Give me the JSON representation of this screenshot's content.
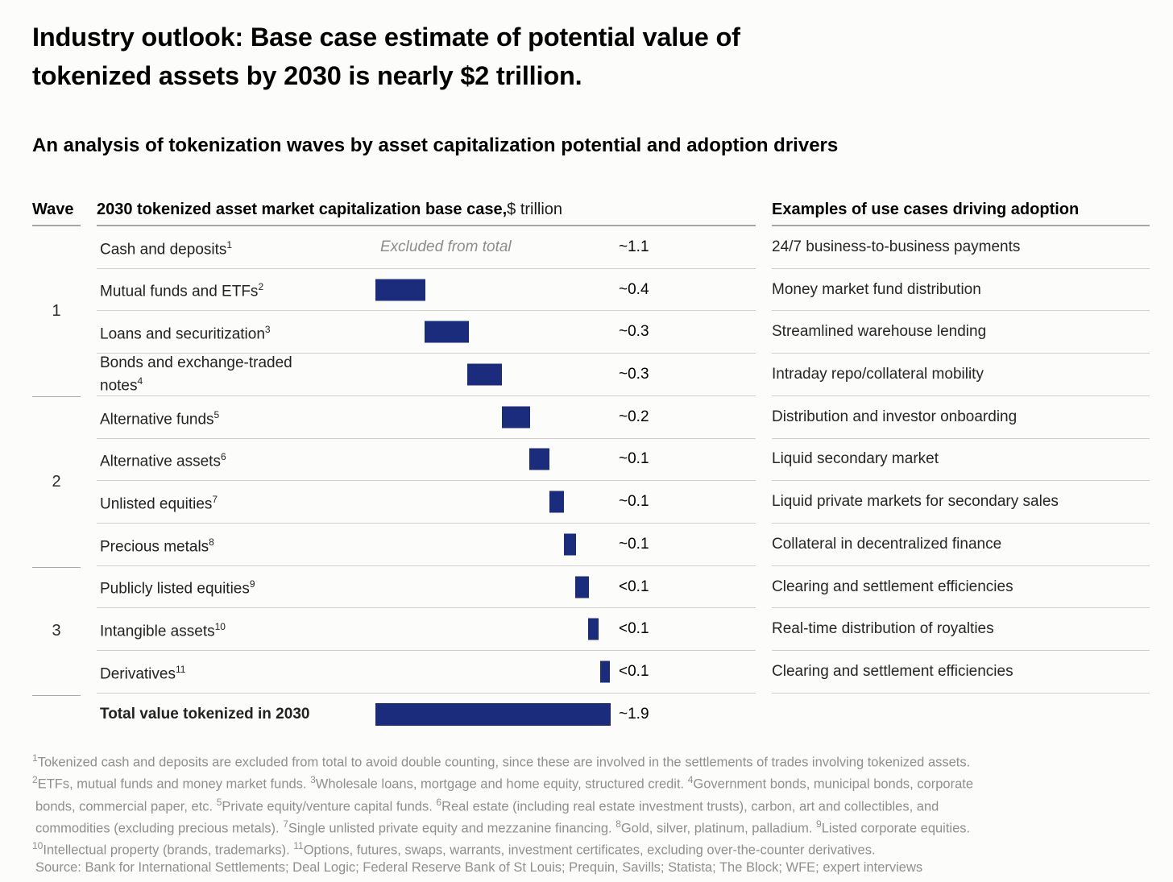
{
  "page": {
    "title_line1": "Industry outlook: Base case estimate of potential value of",
    "title_line2": "tokenized assets by 2030 is nearly $2 trillion.",
    "subtitle": "An analysis of tokenization waves by asset capitalization potential and adoption drivers"
  },
  "table": {
    "headers": {
      "wave": "Wave",
      "main_bold": "2030 tokenized asset market capitalization base case,",
      "main_regular": " $ trillion",
      "usecases": "Examples of use cases driving adoption"
    },
    "waves": [
      {
        "label": "1"
      },
      {
        "label": "2"
      },
      {
        "label": "3"
      }
    ],
    "rows": [
      {
        "label": "Cash and deposits",
        "sup": "1",
        "wave": 1,
        "note": "Excluded from total",
        "value": "~1.1",
        "usecase": "24/7 business-to-business payments",
        "bar": null
      },
      {
        "label": "Mutual funds and ETFs",
        "sup": "2",
        "wave": 1,
        "value": "~0.4",
        "usecase": "Money market fund distribution",
        "bar": {
          "left_pct": 0,
          "width_pct": 21.1
        }
      },
      {
        "label": "Loans and securitization",
        "sup": "3",
        "wave": 1,
        "value": "~0.3",
        "usecase": "Streamlined warehouse lending",
        "bar": {
          "left_pct": 20.9,
          "width_pct": 18.8
        }
      },
      {
        "label": "Bonds and exchange-traded notes",
        "sup": "4",
        "wave": 1,
        "value": "~0.3",
        "usecase": "Intraday repo/collateral mobility",
        "bar": {
          "left_pct": 39.0,
          "width_pct": 14.6
        }
      },
      {
        "label": "Alternative funds",
        "sup": "5",
        "wave": 2,
        "value": "~0.2",
        "usecase": "Distribution and investor onboarding",
        "bar": {
          "left_pct": 53.7,
          "width_pct": 12.2
        }
      },
      {
        "label": "Alternative assets",
        "sup": "6",
        "wave": 2,
        "value": "~0.1",
        "usecase": "Liquid secondary market",
        "bar": {
          "left_pct": 65.5,
          "width_pct": 8.4
        }
      },
      {
        "label": "Unlisted equities",
        "sup": "7",
        "wave": 2,
        "value": "~0.1",
        "usecase": "Liquid private markets for secondary sales",
        "bar": {
          "left_pct": 74.1,
          "width_pct": 6.1
        }
      },
      {
        "label": "Precious metals",
        "sup": "8",
        "wave": 2,
        "value": "~0.1",
        "usecase": "Collateral in decentralized finance",
        "bar": {
          "left_pct": 80.3,
          "width_pct": 4.9
        }
      },
      {
        "label": "Publicly listed equities",
        "sup": "9",
        "wave": 3,
        "value": "<0.1",
        "usecase": "Clearing and settlement efficiencies",
        "bar": {
          "left_pct": 85.0,
          "width_pct": 5.7
        }
      },
      {
        "label": "Intangible assets",
        "sup": "10",
        "wave": 3,
        "value": "<0.1",
        "usecase": "Real-time distribution of royalties",
        "bar": {
          "left_pct": 90.4,
          "width_pct": 4.6
        }
      },
      {
        "label": "Derivatives",
        "sup": "11",
        "wave": 3,
        "value": "<0.1",
        "usecase": "Clearing and settlement efficiencies",
        "bar": {
          "left_pct": 95.5,
          "width_pct": 4.3
        }
      }
    ],
    "total": {
      "label": "Total value tokenized in 2030",
      "value": "~1.9"
    }
  },
  "footnotes": {
    "lines": [
      {
        "segments": [
          {
            "sup": "1",
            "text": "Tokenized cash and deposits are excluded from total to avoid double counting, since these are involved in the settlements of trades involving tokenized assets."
          }
        ]
      },
      {
        "segments": [
          {
            "sup": "2",
            "text": "ETFs, mutual funds and money market funds. "
          },
          {
            "sup": "3",
            "text": "Wholesale loans, mortgage and home equity, structured credit. "
          },
          {
            "sup": "4",
            "text": "Government bonds, municipal bonds, corporate"
          }
        ]
      },
      {
        "segments": [
          {
            "text": "bonds, commercial paper, etc. "
          },
          {
            "sup": "5",
            "text": "Private equity/venture capital funds. "
          },
          {
            "sup": "6",
            "text": "Real estate (including real estate investment trusts), carbon, art and collectibles, and"
          }
        ]
      },
      {
        "segments": [
          {
            "text": "commodities (excluding precious metals). "
          },
          {
            "sup": "7",
            "text": "Single unlisted private equity and mezzanine financing. "
          },
          {
            "sup": "8",
            "text": "Gold, silver, platinum, palladium. "
          },
          {
            "sup": "9",
            "text": "Listed corporate equities."
          }
        ]
      },
      {
        "segments": [
          {
            "sup": "10",
            "text": "Intellectual property (brands, trademarks). "
          },
          {
            "sup": "11",
            "text": "Options, futures, swaps, warrants, investment certificates, excluding over-the-counter derivatives."
          }
        ]
      },
      {
        "segments": [
          {
            "text": "Source: Bank for International Settlements; Deal Logic; Federal Reserve Bank of St Louis; Prequin, Savills; Statista; The Block; WFE; expert interviews"
          }
        ]
      }
    ]
  },
  "colors": {
    "bar_navy": "#1c2c7d",
    "row_line": "#cfcfcd",
    "header_line": "#a6a6a4",
    "footnote_gray": "#8f8f8f",
    "excluded_gray": "#8c8c8c",
    "background": "#fcfcfa"
  },
  "chart_data": {
    "type": "bar",
    "variant": "waterfall",
    "title": "Industry outlook: Base case estimate of potential value of tokenized assets by 2030 is nearly $2 trillion.",
    "subtitle": "An analysis of tokenization waves by asset capitalization potential and adoption drivers",
    "unit": "$ trillion",
    "value_axis_label": "2030 tokenized asset market capitalization base case, $ trillion",
    "legend": "none",
    "grid": "off",
    "rows": [
      {
        "category": "Cash and deposits",
        "wave": 1,
        "value": 1.1,
        "value_label": "~1.1",
        "excluded_from_total": true,
        "use_case": "24/7 business-to-business payments"
      },
      {
        "category": "Mutual funds and ETFs",
        "wave": 1,
        "value": 0.4,
        "value_label": "~0.4",
        "excluded_from_total": false,
        "use_case": "Money market fund distribution"
      },
      {
        "category": "Loans and securitization",
        "wave": 1,
        "value": 0.3,
        "value_label": "~0.3",
        "excluded_from_total": false,
        "use_case": "Streamlined warehouse lending"
      },
      {
        "category": "Bonds and exchange-traded notes",
        "wave": 1,
        "value": 0.3,
        "value_label": "~0.3",
        "excluded_from_total": false,
        "use_case": "Intraday repo/collateral mobility"
      },
      {
        "category": "Alternative funds",
        "wave": 2,
        "value": 0.2,
        "value_label": "~0.2",
        "excluded_from_total": false,
        "use_case": "Distribution and investor onboarding"
      },
      {
        "category": "Alternative assets",
        "wave": 2,
        "value": 0.1,
        "value_label": "~0.1",
        "excluded_from_total": false,
        "use_case": "Liquid secondary market"
      },
      {
        "category": "Unlisted equities",
        "wave": 2,
        "value": 0.1,
        "value_label": "~0.1",
        "excluded_from_total": false,
        "use_case": "Liquid private markets for secondary sales"
      },
      {
        "category": "Precious metals",
        "wave": 2,
        "value": 0.1,
        "value_label": "~0.1",
        "excluded_from_total": false,
        "use_case": "Collateral in decentralized finance"
      },
      {
        "category": "Publicly listed equities",
        "wave": 3,
        "value": 0.1,
        "value_label": "<0.1",
        "excluded_from_total": false,
        "use_case": "Clearing and settlement efficiencies"
      },
      {
        "category": "Intangible assets",
        "wave": 3,
        "value": 0.1,
        "value_label": "<0.1",
        "excluded_from_total": false,
        "use_case": "Real-time distribution of royalties"
      },
      {
        "category": "Derivatives",
        "wave": 3,
        "value": 0.1,
        "value_label": "<0.1",
        "excluded_from_total": false,
        "use_case": "Clearing and settlement efficiencies"
      }
    ],
    "total": {
      "category": "Total value tokenized in 2030",
      "value": 1.9,
      "value_label": "~1.9"
    }
  }
}
